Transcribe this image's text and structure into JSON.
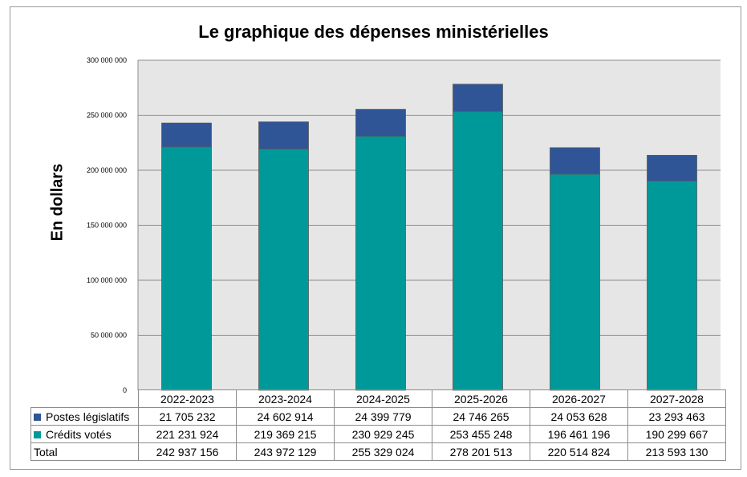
{
  "chart_data": {
    "type": "bar",
    "stacked": true,
    "title": "Le graphique des dépenses ministérielles",
    "ylabel": "En dollars",
    "xlabel": "",
    "ylim": [
      0,
      300000000
    ],
    "yticks": [
      0,
      50000000,
      100000000,
      150000000,
      200000000,
      250000000,
      300000000
    ],
    "ytick_labels": [
      "0",
      "50 000 000",
      "100 000 000",
      "150 000 000",
      "200 000 000",
      "250 000 000",
      "300 000 000"
    ],
    "grid": true,
    "categories": [
      "2022-2023",
      "2023-2024",
      "2024-2025",
      "2025-2026",
      "2026-2027",
      "2027-2028"
    ],
    "series": [
      {
        "name": "Crédits votés",
        "color": "#009999",
        "values": [
          221231924,
          219369215,
          230929245,
          253455248,
          196461196,
          190299667
        ],
        "labels": [
          "221 231 924",
          "219 369 215",
          "230 929 245",
          "253 455 248",
          "196 461 196",
          "190 299 667"
        ]
      },
      {
        "name": "Postes législatifs",
        "color": "#2f5597",
        "values": [
          21705232,
          24602914,
          24399779,
          24746265,
          24053628,
          23293463
        ],
        "labels": [
          "21 705 232",
          "24 602 914",
          "24 399 779",
          "24 746 265",
          "24 053 628",
          "23 293 463"
        ]
      }
    ],
    "table": {
      "total_label": "Total",
      "totals": [
        "242 937 156",
        "243 972 129",
        "255 329 024",
        "278 201 513",
        "220 514 824",
        "213 593 130"
      ]
    },
    "plot_background": "#e6e6e6"
  }
}
